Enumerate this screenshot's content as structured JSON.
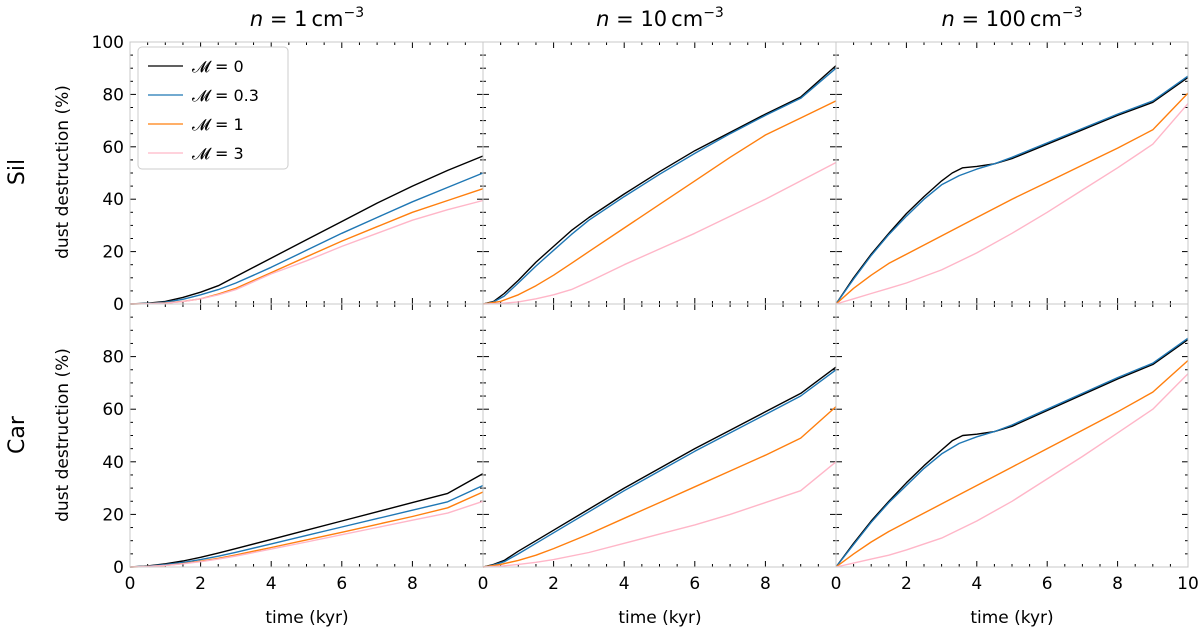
{
  "chart_data": {
    "type": "line",
    "xlim": [
      0,
      10
    ],
    "ylim": [
      0,
      100
    ],
    "x_ticks": [
      0,
      2,
      4,
      6,
      8,
      10
    ],
    "y_ticks": [
      0,
      20,
      40,
      60,
      80,
      100
    ],
    "xlabel": "time (kyr)",
    "ylabel": "dust destruction (%)",
    "columns": [
      {
        "prefix": "n = ",
        "value": "1",
        "unit": "cm",
        "exp": "−3"
      },
      {
        "prefix": "n = ",
        "value": "10",
        "unit": "cm",
        "exp": "−3"
      },
      {
        "prefix": "n = ",
        "value": "100",
        "unit": "cm",
        "exp": "−3"
      }
    ],
    "rows": [
      "Sil",
      "Car"
    ],
    "legend": {
      "position": "top-left of first panel",
      "entries": [
        {
          "label": "𝓜 = 0",
          "color": "#000000"
        },
        {
          "label": "𝓜 = 0.3",
          "color": "#1f77b4"
        },
        {
          "label": "𝓜 = 1",
          "color": "#ff7f0e"
        },
        {
          "label": "𝓜 = 3",
          "color": "#ffb6c8"
        }
      ]
    },
    "panels": [
      {
        "row": "Sil",
        "col": 0,
        "series": [
          {
            "name": "𝓜 = 0",
            "color": "#000000",
            "x": [
              0,
              0.5,
              1,
              1.5,
              2,
              2.5,
              3,
              3.5,
              4,
              5,
              6,
              7,
              8,
              9,
              10
            ],
            "y": [
              0,
              0.3,
              1,
              2.5,
              4.5,
              7,
              10.5,
              14,
              17.5,
              24.5,
              31.5,
              38.5,
              45,
              51,
              56.5
            ]
          },
          {
            "name": "𝓜 = 0.3",
            "color": "#1f77b4",
            "x": [
              0,
              0.5,
              1,
              1.5,
              2,
              2.5,
              3,
              3.5,
              4,
              5,
              6,
              7,
              8,
              9,
              10
            ],
            "y": [
              0,
              0.2,
              0.7,
              1.8,
              3.5,
              5.5,
              8,
              11,
              14,
              20.5,
              27,
              33,
              39,
              44.5,
              50
            ]
          },
          {
            "name": "𝓜 = 1",
            "color": "#ff7f0e",
            "x": [
              0,
              0.5,
              1,
              1.5,
              2,
              2.5,
              3,
              3.5,
              4,
              5,
              6,
              7,
              8,
              9,
              10
            ],
            "y": [
              0,
              0.1,
              0.4,
              1,
              2,
              3.8,
              6,
              9,
              12,
              18,
              24,
              29.5,
              35,
              39.5,
              44
            ]
          },
          {
            "name": "𝓜 = 3",
            "color": "#ffb6c8",
            "x": [
              0,
              0.5,
              1,
              1.5,
              2,
              2.5,
              3,
              3.5,
              4,
              5,
              6,
              7,
              8,
              9,
              10
            ],
            "y": [
              0,
              0.1,
              0.3,
              0.9,
              2,
              3.5,
              5.5,
              8.5,
              11.5,
              16.5,
              22,
              27,
              32,
              36,
              39.5
            ]
          }
        ]
      },
      {
        "row": "Sil",
        "col": 1,
        "series": [
          {
            "name": "𝓜 = 0",
            "color": "#000000",
            "x": [
              0,
              0.3,
              0.6,
              1,
              1.5,
              2,
              2.5,
              3,
              4,
              5,
              6,
              7,
              8,
              9,
              10
            ],
            "y": [
              0,
              1,
              4,
              9,
              16,
              22,
              28,
              33,
              42,
              50.5,
              58.5,
              65.5,
              72.5,
              79,
              91
            ]
          },
          {
            "name": "𝓜 = 0.3",
            "color": "#1f77b4",
            "x": [
              0,
              0.3,
              0.6,
              1,
              1.5,
              2,
              2.5,
              3,
              4,
              5,
              6,
              7,
              8,
              9,
              10
            ],
            "y": [
              0,
              0.8,
              3,
              8,
              14.5,
              20.5,
              26.5,
              32,
              41,
              49.5,
              57.5,
              65,
              72,
              78.5,
              90
            ]
          },
          {
            "name": "𝓜 = 1",
            "color": "#ff7f0e",
            "x": [
              0,
              0.5,
              1,
              1.5,
              2,
              2.5,
              3,
              4,
              5,
              6,
              7,
              8,
              9,
              10
            ],
            "y": [
              0,
              1,
              3.5,
              7,
              11,
              15.5,
              20,
              29,
              38,
              47,
              56,
              64.5,
              71,
              77.5
            ]
          },
          {
            "name": "𝓜 = 3",
            "color": "#ffb6c8",
            "x": [
              0,
              0.5,
              1,
              1.5,
              2,
              2.5,
              3,
              4,
              5,
              6,
              7,
              8,
              9,
              10
            ],
            "y": [
              0,
              0.2,
              0.8,
              2,
              3.5,
              5.5,
              8.5,
              15,
              21,
              27,
              33.5,
              40,
              47,
              54
            ]
          }
        ]
      },
      {
        "row": "Sil",
        "col": 2,
        "series": [
          {
            "name": "𝓜 = 0",
            "color": "#000000",
            "x": [
              0,
              0.5,
              1,
              1.5,
              2,
              2.5,
              3,
              3.3,
              3.6,
              4,
              4.5,
              5,
              6,
              7,
              8,
              9,
              10
            ],
            "y": [
              0,
              10,
              19,
              27,
              34.5,
              41,
              47,
              50,
              52,
              52.5,
              53.5,
              55.5,
              61,
              66.5,
              72,
              77,
              86.5
            ]
          },
          {
            "name": "𝓜 = 0.3",
            "color": "#1f77b4",
            "x": [
              0,
              0.5,
              1,
              1.5,
              2,
              2.5,
              3,
              3.5,
              4,
              4.5,
              5,
              6,
              7,
              8,
              9,
              10
            ],
            "y": [
              0,
              9.5,
              18.5,
              26.5,
              33.5,
              40,
              45.5,
              49,
              51.5,
              53.5,
              56,
              61.5,
              67,
              72.5,
              77.5,
              87
            ]
          },
          {
            "name": "𝓜 = 1",
            "color": "#ff7f0e",
            "x": [
              0,
              0.5,
              1,
              1.5,
              2,
              3,
              4,
              5,
              6,
              7,
              8,
              9,
              10
            ],
            "y": [
              0,
              6,
              11,
              15.5,
              19,
              26,
              33,
              40,
              46.5,
              53,
              59.5,
              66.5,
              80.5
            ]
          },
          {
            "name": "𝓜 = 3",
            "color": "#ffb6c8",
            "x": [
              0,
              0.5,
              1,
              1.5,
              2,
              3,
              4,
              5,
              6,
              7,
              8,
              9,
              10
            ],
            "y": [
              0,
              2,
              4,
              6,
              8,
              13,
              19.5,
              27,
              35,
              43.5,
              52,
              61,
              76.5
            ]
          }
        ]
      },
      {
        "row": "Car",
        "col": 0,
        "series": [
          {
            "name": "𝓜 = 0",
            "color": "#000000",
            "x": [
              0,
              0.5,
              1,
              1.5,
              2,
              2.5,
              3,
              4,
              5,
              6,
              7,
              8,
              9,
              10
            ],
            "y": [
              0,
              0.4,
              1.2,
              2.3,
              3.7,
              5.3,
              7,
              10.5,
              14,
              17.5,
              21,
              24.5,
              28,
              35.5
            ]
          },
          {
            "name": "𝓜 = 0.3",
            "color": "#1f77b4",
            "x": [
              0,
              0.5,
              1,
              1.5,
              2,
              2.5,
              3,
              4,
              5,
              6,
              7,
              8,
              9,
              10
            ],
            "y": [
              0,
              0.3,
              0.9,
              1.7,
              2.8,
              4.1,
              5.6,
              8.8,
              12,
              15.2,
              18.4,
              21.6,
              24.8,
              31
            ]
          },
          {
            "name": "𝓜 = 1",
            "color": "#ff7f0e",
            "x": [
              0,
              0.5,
              1,
              1.5,
              2,
              2.5,
              3,
              4,
              5,
              6,
              7,
              8,
              9,
              10
            ],
            "y": [
              0,
              0.2,
              0.6,
              1.3,
              2.2,
              3.3,
              4.6,
              7.4,
              10.3,
              13.2,
              16.2,
              19.2,
              22.5,
              28.5
            ]
          },
          {
            "name": "𝓜 = 3",
            "color": "#ffb6c8",
            "x": [
              0,
              0.5,
              1,
              1.5,
              2,
              2.5,
              3,
              4,
              5,
              6,
              7,
              8,
              9,
              10
            ],
            "y": [
              0,
              0.2,
              0.6,
              1.2,
              2,
              3,
              4.2,
              6.8,
              9.5,
              12.3,
              15,
              17.8,
              20.5,
              25
            ]
          }
        ]
      },
      {
        "row": "Car",
        "col": 1,
        "series": [
          {
            "name": "𝓜 = 0",
            "color": "#000000",
            "x": [
              0,
              0.3,
              0.6,
              1,
              1.5,
              2,
              3,
              4,
              5,
              6,
              7,
              8,
              9,
              10
            ],
            "y": [
              0,
              1,
              2.5,
              6,
              10,
              14,
              22,
              30,
              37.5,
              45,
              52,
              59,
              66,
              76
            ]
          },
          {
            "name": "𝓜 = 0.3",
            "color": "#1f77b4",
            "x": [
              0,
              0.3,
              0.6,
              1,
              1.5,
              2,
              3,
              4,
              5,
              6,
              7,
              8,
              9,
              10
            ],
            "y": [
              0,
              0.8,
              2,
              5,
              9,
              13,
              21,
              29,
              36.5,
              44,
              51,
              58,
              65,
              75
            ]
          },
          {
            "name": "𝓜 = 1",
            "color": "#ff7f0e",
            "x": [
              0,
              0.5,
              1,
              1.5,
              2,
              3,
              4,
              5,
              6,
              7,
              8,
              9,
              10
            ],
            "y": [
              0,
              1,
              2.5,
              4.5,
              7,
              12.5,
              18.5,
              24.5,
              30.5,
              36.5,
              42.5,
              49,
              61
            ]
          },
          {
            "name": "𝓜 = 3",
            "color": "#ffb6c8",
            "x": [
              0,
              0.5,
              1,
              1.5,
              2,
              3,
              4,
              5,
              6,
              7,
              8,
              9,
              10
            ],
            "y": [
              0,
              0.3,
              1,
              1.8,
              2.8,
              5.5,
              9,
              12.5,
              16,
              20,
              24.5,
              29,
              40
            ]
          }
        ]
      },
      {
        "row": "Car",
        "col": 2,
        "series": [
          {
            "name": "𝓜 = 0",
            "color": "#000000",
            "x": [
              0,
              0.5,
              1,
              1.5,
              2,
              2.5,
              3,
              3.3,
              3.6,
              4,
              4.5,
              5,
              6,
              7,
              8,
              9,
              10
            ],
            "y": [
              0,
              9,
              17.5,
              25,
              32,
              38.5,
              44.5,
              48,
              50,
              50.5,
              51.5,
              53.5,
              59.5,
              65.5,
              71.5,
              77,
              86.5
            ]
          },
          {
            "name": "𝓜 = 0.3",
            "color": "#1f77b4",
            "x": [
              0,
              0.5,
              1,
              1.5,
              2,
              2.5,
              3,
              3.5,
              4,
              4.5,
              5,
              6,
              7,
              8,
              9,
              10
            ],
            "y": [
              0,
              8.5,
              17,
              24.5,
              31,
              37.5,
              43,
              47,
              49.5,
              51.5,
              54,
              60,
              66,
              72,
              77.5,
              87
            ]
          },
          {
            "name": "𝓜 = 1",
            "color": "#ff7f0e",
            "x": [
              0,
              0.5,
              1,
              1.5,
              2,
              3,
              4,
              5,
              6,
              7,
              8,
              9,
              10
            ],
            "y": [
              0,
              5,
              9.5,
              13.5,
              17,
              24,
              31,
              38,
              45,
              52,
              59,
              66.5,
              78.5
            ]
          },
          {
            "name": "𝓜 = 3",
            "color": "#ffb6c8",
            "x": [
              0,
              0.5,
              1,
              1.5,
              2,
              3,
              4,
              5,
              6,
              7,
              8,
              9,
              10
            ],
            "y": [
              0,
              1.5,
              3,
              4.5,
              6.5,
              11,
              17.5,
              25,
              33.5,
              42,
              51,
              60,
              73.5
            ]
          }
        ]
      }
    ]
  }
}
